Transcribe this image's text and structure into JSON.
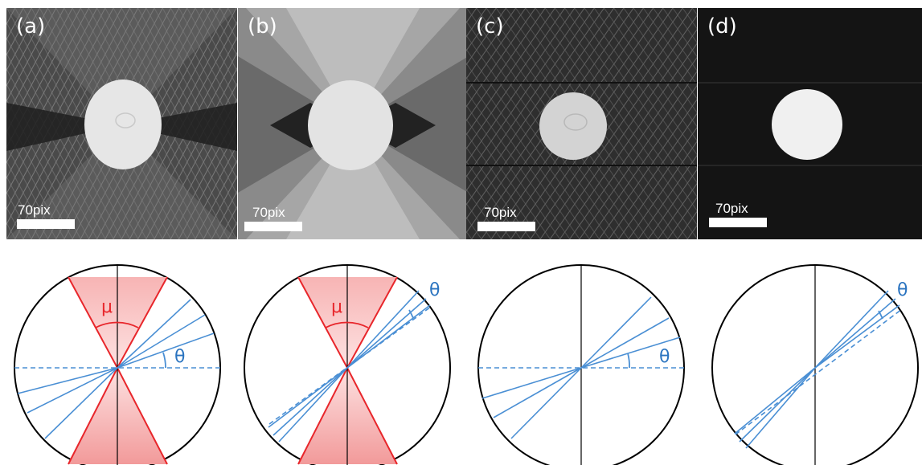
{
  "panels": [
    {
      "label": "(a)",
      "scale_bar_label": "70pix"
    },
    {
      "label": "(b)",
      "scale_bar_label": "70pix"
    },
    {
      "label": "(c)",
      "scale_bar_label": "70pix"
    },
    {
      "label": "(d)",
      "scale_bar_label": "70pix"
    }
  ],
  "diagrams": [
    {
      "mu_label": "μ",
      "theta_label": "θ"
    },
    {
      "mu_label": "μ",
      "theta_label": "θ"
    },
    {
      "theta_label": "θ"
    },
    {
      "theta_label": "θ"
    }
  ],
  "colors": {
    "wedge_red": "#e8262b",
    "ray_blue": "#4a8fd4",
    "theta_blue": "#2b74c0"
  }
}
